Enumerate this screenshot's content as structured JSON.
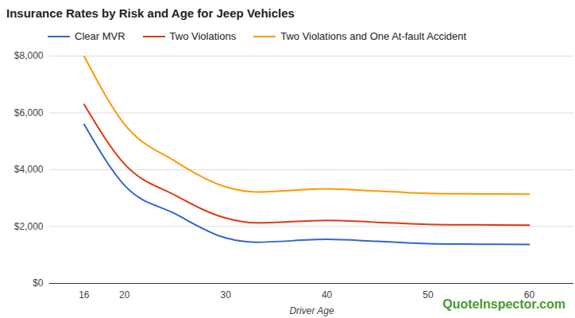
{
  "chart_data": {
    "type": "line",
    "title": "Insurance Rates by Risk and Age for Jeep Vehicles",
    "x_label": "Driver Age",
    "annotations": [
      "QuoteInspector.com"
    ],
    "x": [
      16,
      20,
      25,
      30,
      33,
      40,
      45,
      50,
      55,
      60
    ],
    "series": [
      {
        "name": "Clear MVR",
        "color": "#3366cc",
        "values": [
          5600,
          3450,
          2450,
          1600,
          1450,
          1550,
          1480,
          1400,
          1380,
          1370
        ]
      },
      {
        "name": "Two Violations",
        "color": "#dc3912",
        "values": [
          6300,
          4200,
          3100,
          2300,
          2130,
          2220,
          2150,
          2080,
          2060,
          2050
        ]
      },
      {
        "name": "Two Violations and One At-fault Accident",
        "color": "#ff9900",
        "values": [
          8000,
          5600,
          4300,
          3400,
          3220,
          3330,
          3250,
          3170,
          3150,
          3140
        ]
      }
    ],
    "xlim": [
      12.6,
      64.4
    ],
    "xticks": [
      16,
      20,
      30,
      40,
      50,
      60
    ],
    "ylim": [
      0,
      8000
    ],
    "yticks": [
      {
        "value": 0,
        "label": "$0"
      },
      {
        "value": 2000,
        "label": "$2,000"
      },
      {
        "value": 4000,
        "label": "$4,000"
      },
      {
        "value": 6000,
        "label": "$6,000"
      },
      {
        "value": 8000,
        "label": "$8,000"
      }
    ],
    "grid": true,
    "legend": "top"
  }
}
